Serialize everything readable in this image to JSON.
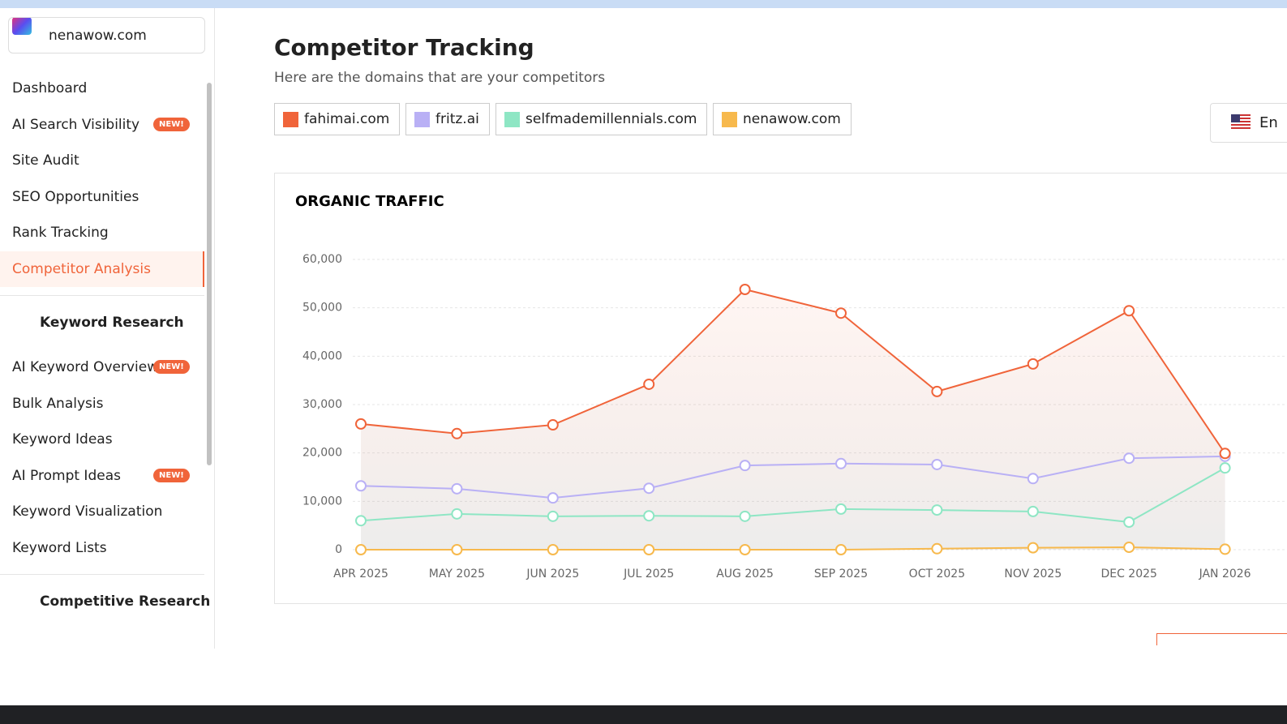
{
  "sidebar": {
    "site": "nenawow.com",
    "items": [
      "Dashboard",
      {
        "label": "AI Search Visibility",
        "badge": "NEW!"
      },
      "Site Audit",
      "SEO Opportunities",
      "Rank Tracking",
      {
        "label": "Competitor Analysis",
        "active": true
      }
    ],
    "sections": [
      {
        "title": "Keyword Research",
        "items": [
          {
            "label": "AI Keyword Overview",
            "badge": "NEW!"
          },
          "Bulk Analysis",
          "Keyword Ideas",
          {
            "label": "AI Prompt Ideas",
            "badge": "NEW!"
          },
          "Keyword Visualization",
          "Keyword Lists"
        ]
      },
      {
        "title": "Competitive Research",
        "items": []
      }
    ]
  },
  "header": {
    "title": "Competitor Tracking",
    "subtitle": "Here are the domains that are your competitors",
    "language": "En"
  },
  "chart_data": {
    "type": "line",
    "title": "ORGANIC TRAFFIC",
    "categories": [
      "APR 2025",
      "MAY 2025",
      "JUN 2025",
      "JUL 2025",
      "AUG 2025",
      "SEP 2025",
      "OCT 2025",
      "NOV 2025",
      "DEC 2025",
      "JAN 2026"
    ],
    "series": [
      {
        "name": "fahimai.com",
        "color": "#f0643a",
        "values": [
          26000,
          24000,
          25800,
          34200,
          53800,
          48900,
          32700,
          38400,
          49400,
          19900
        ]
      },
      {
        "name": "fritz.ai",
        "color": "#b9b0f5",
        "values": [
          13200,
          12600,
          10700,
          12700,
          17400,
          17800,
          17600,
          14700,
          18900,
          19300
        ]
      },
      {
        "name": "selfmademillennials.com",
        "color": "#8ee6c4",
        "values": [
          6000,
          7400,
          6900,
          7000,
          6900,
          8400,
          8200,
          7900,
          5700,
          16900
        ]
      },
      {
        "name": "nenawow.com",
        "color": "#f7b94d",
        "values": [
          0,
          0,
          0,
          0,
          0,
          0,
          200,
          400,
          500,
          100
        ]
      }
    ],
    "ylim": [
      0,
      60000
    ],
    "yticks": [
      0,
      {
        "value": 10000,
        "label": "10,000"
      },
      {
        "value": 20000,
        "label": "20,000"
      },
      {
        "value": 30000,
        "label": "30,000"
      },
      {
        "value": 40000,
        "label": "40,000"
      },
      {
        "value": 50000,
        "label": "50,000"
      },
      {
        "value": 60000,
        "label": "60,000"
      }
    ],
    "grid": true
  }
}
